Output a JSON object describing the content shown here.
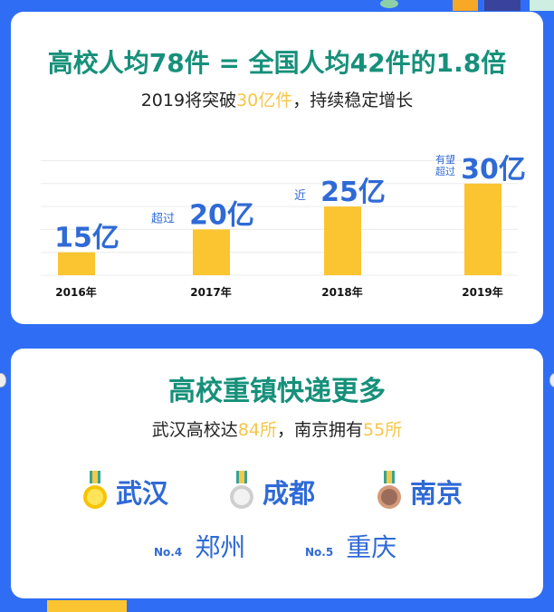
{
  "colors": {
    "background": "#2f6ef4",
    "title": "#16907a",
    "bar": "#fbc531",
    "value_label": "#2f6ad6",
    "highlight": "#f5c649"
  },
  "section1": {
    "title": "高校人均78件 = 全国人均42件的1.8倍",
    "subtitle_pre": "2019将突破",
    "subtitle_hl": "30亿件",
    "subtitle_post": "，持续稳定增长"
  },
  "chart_data": {
    "type": "bar",
    "categories": [
      "2016年",
      "2017年",
      "2018年",
      "2019年"
    ],
    "values": [
      15,
      20,
      25,
      30
    ],
    "unit": "亿",
    "value_prefixes": [
      "",
      "超过",
      "近",
      "有望超过"
    ],
    "value_labels": [
      "15亿",
      "20亿",
      "25亿",
      "30亿"
    ],
    "ylim": [
      10,
      35
    ],
    "grid": true
  },
  "section2": {
    "title": "高校重镇快递更多",
    "subtitle_pre": "武汉高校达",
    "subtitle_hl1": "84所",
    "subtitle_mid": "，南京拥有",
    "subtitle_hl2": "55所",
    "medals": [
      {
        "city": "武汉",
        "medal": "gold-medal-icon"
      },
      {
        "city": "成都",
        "medal": "silver-medal-icon"
      },
      {
        "city": "南京",
        "medal": "bronze-medal-icon"
      }
    ],
    "ranks": [
      {
        "no": "No.4",
        "city": "郑州"
      },
      {
        "no": "No.5",
        "city": "重庆"
      }
    ]
  }
}
